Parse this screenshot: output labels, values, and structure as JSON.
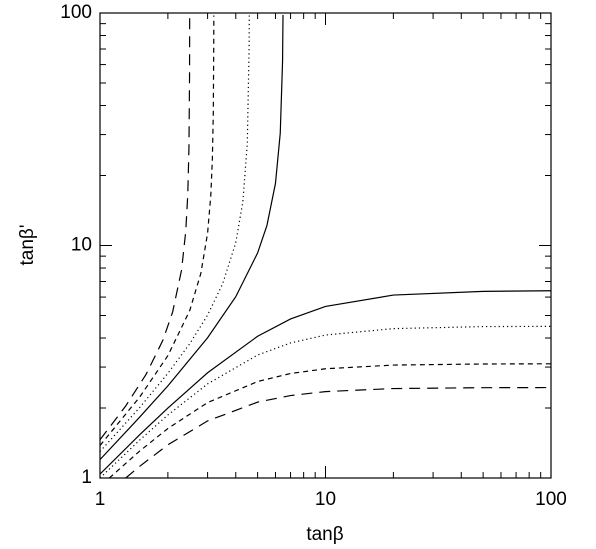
{
  "chart_data": {
    "type": "line",
    "xlabel": "tanβ",
    "ylabel": "tanβ'",
    "xscale": "log",
    "yscale": "log",
    "xlim": [
      1,
      100
    ],
    "ylim": [
      1,
      100
    ],
    "xticks": [
      1,
      10,
      100
    ],
    "yticks": [
      1,
      10,
      100
    ],
    "xminorticks": [
      2,
      3,
      4,
      5,
      6,
      7,
      8,
      9,
      20,
      30,
      40,
      50,
      60,
      70,
      80,
      90
    ],
    "yminorticks": [
      2,
      3,
      4,
      5,
      6,
      7,
      8,
      9,
      20,
      30,
      40,
      50,
      60,
      70,
      80,
      90
    ],
    "series": [
      {
        "style": "solid",
        "color": "#000000",
        "x": [
          1,
          1.5,
          2,
          3,
          5,
          7,
          10,
          20,
          50,
          100
        ],
        "values": [
          1.04,
          1.535,
          2.0,
          2.835,
          4.07,
          4.83,
          5.47,
          6.12,
          6.35,
          6.39
        ]
      },
      {
        "style": "solid",
        "color": "#000000",
        "x": [
          1,
          1.5,
          2,
          3,
          4,
          5,
          5.5,
          6,
          6.3,
          6.45,
          6.48
        ],
        "values": [
          1.2,
          1.828,
          2.49,
          4.01,
          6.02,
          9.29,
          12.2,
          18.5,
          30.4,
          61.9,
          98.1
        ]
      },
      {
        "style": "dotted",
        "color": "#000000",
        "x": [
          1,
          1.5,
          2,
          3,
          5,
          7,
          10,
          20,
          50,
          100
        ],
        "values": [
          1.0,
          1.456,
          1.867,
          2.54,
          3.38,
          3.81,
          4.12,
          4.39,
          4.48,
          4.49
        ]
      },
      {
        "style": "dotted",
        "color": "#000000",
        "x": [
          1,
          1.5,
          2,
          2.5,
          3,
          3.5,
          4,
          4.3,
          4.5,
          4.585,
          4.592
        ],
        "values": [
          1.3,
          2.01,
          2.82,
          3.78,
          5.02,
          6.85,
          10.28,
          15.4,
          27.5,
          72,
          99
        ]
      },
      {
        "style": "dashed",
        "color": "#000000",
        "x": [
          1.1,
          1.5,
          2,
          3,
          5,
          7,
          10,
          20,
          50,
          100
        ],
        "values": [
          1.0,
          1.306,
          1.633,
          2.11,
          2.6,
          2.815,
          2.95,
          3.06,
          3.093,
          3.099
        ]
      },
      {
        "style": "dashed",
        "color": "#000000",
        "x": [
          1,
          1.5,
          2,
          2.5,
          2.8,
          3,
          3.1,
          3.15,
          3.18,
          3.195,
          3.197
        ],
        "values": [
          1.38,
          2.23,
          3.36,
          5.25,
          7.58,
          11.3,
          16.4,
          23.5,
          37.4,
          75.3,
          97.5
        ]
      },
      {
        "style": "long-dashed",
        "color": "#000000",
        "x": [
          1.3,
          1.5,
          2,
          3,
          5,
          7,
          10,
          20,
          50,
          100
        ],
        "values": [
          1.0,
          1.123,
          1.389,
          1.76,
          2.12,
          2.263,
          2.353,
          2.425,
          2.446,
          2.449
        ]
      },
      {
        "style": "long-dashed",
        "color": "#000000",
        "x": [
          1,
          1.3,
          1.6,
          1.9,
          2.1,
          2.3,
          2.4,
          2.45,
          2.48,
          2.495,
          2.4985
        ],
        "values": [
          1.46,
          2.04,
          2.79,
          3.91,
          5.18,
          7.85,
          11.5,
          16.5,
          26.3,
          52.8,
          96.5
        ]
      }
    ]
  }
}
